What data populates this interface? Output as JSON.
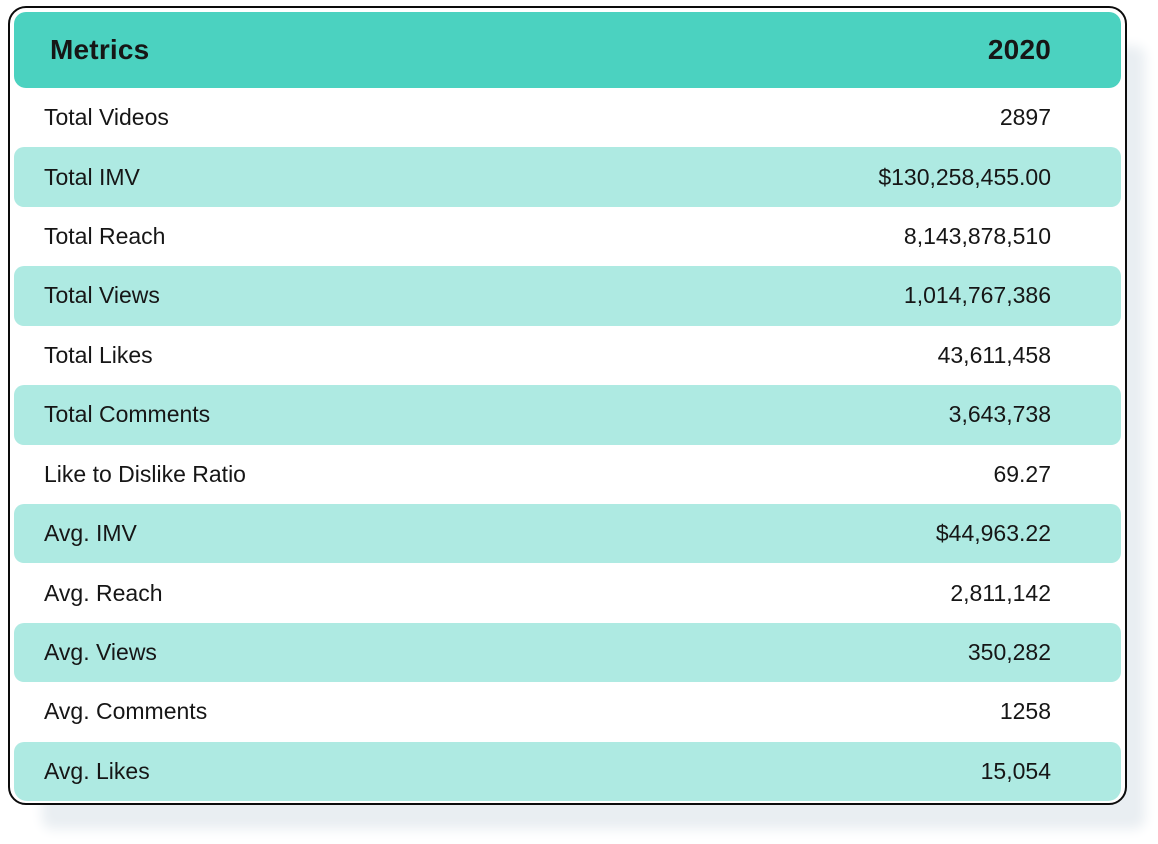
{
  "table": {
    "header": {
      "metric_label": "Metrics",
      "value_label": "2020"
    },
    "rows": [
      {
        "label": "Total Videos",
        "value": "2897"
      },
      {
        "label": "Total IMV",
        "value": "$130,258,455.00"
      },
      {
        "label": "Total Reach",
        "value": "8,143,878,510"
      },
      {
        "label": "Total Views",
        "value": "1,014,767,386"
      },
      {
        "label": "Total Likes",
        "value": "43,611,458"
      },
      {
        "label": "Total Comments",
        "value": "3,643,738"
      },
      {
        "label": "Like to Dislike Ratio",
        "value": "69.27"
      },
      {
        "label": "Avg. IMV",
        "value": "$44,963.22"
      },
      {
        "label": "Avg. Reach",
        "value": "2,811,142"
      },
      {
        "label": "Avg. Views",
        "value": "350,282"
      },
      {
        "label": "Avg. Comments",
        "value": "1258"
      },
      {
        "label": "Avg. Likes",
        "value": "15,054"
      }
    ],
    "colors": {
      "header_bg": "#4bd2c0",
      "row_alt_bg": "#aeeae2",
      "text": "#161616",
      "border": "#0c0c0c",
      "shadow": "#e9eef2"
    }
  },
  "chart_data": {
    "type": "table",
    "title": "Metrics 2020",
    "columns": [
      "Metrics",
      "2020"
    ],
    "rows": [
      [
        "Total Videos",
        "2897"
      ],
      [
        "Total IMV",
        "$130,258,455.00"
      ],
      [
        "Total Reach",
        "8,143,878,510"
      ],
      [
        "Total Views",
        "1,014,767,386"
      ],
      [
        "Total Likes",
        "43,611,458"
      ],
      [
        "Total Comments",
        "3,643,738"
      ],
      [
        "Like to Dislike Ratio",
        "69.27"
      ],
      [
        "Avg. IMV",
        "$44,963.22"
      ],
      [
        "Avg. Reach",
        "2,811,142"
      ],
      [
        "Avg. Views",
        "350,282"
      ],
      [
        "Avg. Comments",
        "1258"
      ],
      [
        "Avg. Likes",
        "15,054"
      ]
    ],
    "layout_hints": {
      "value_alignment": "right",
      "striped": true,
      "stripe_rows": "even (2nd, 4th, ...)"
    }
  }
}
